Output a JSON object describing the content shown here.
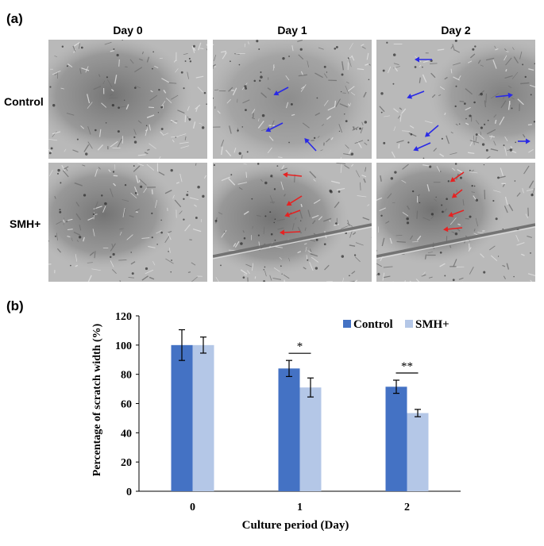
{
  "panel_a": {
    "label": "(a)",
    "columns": [
      "Day 0",
      "Day 1",
      "Day 2"
    ],
    "rows": [
      "Control",
      "SMH+"
    ],
    "arrow_colors": {
      "control": "#2a2ae6",
      "smh": "#e62222"
    }
  },
  "panel_b": {
    "label": "(b)"
  },
  "chart_data": {
    "type": "bar",
    "categories": [
      "0",
      "1",
      "2"
    ],
    "series": [
      {
        "name": "Control",
        "values": [
          100,
          84,
          71.5
        ],
        "errors": [
          10.5,
          5.5,
          4.5
        ],
        "color": "#4472c4"
      },
      {
        "name": "SMH+",
        "values": [
          100,
          71,
          53.5
        ],
        "errors": [
          5.5,
          6.5,
          2.5
        ],
        "color": "#b4c7e7"
      }
    ],
    "xlabel": "Culture period (Day)",
    "ylabel": "Percentage of scratch width (%)",
    "ylim": [
      0,
      120
    ],
    "yticks": [
      0,
      20,
      40,
      60,
      80,
      100,
      120
    ],
    "legend_position": "top-right",
    "grid": false,
    "significance": [
      {
        "category": "1",
        "label": "*"
      },
      {
        "category": "2",
        "label": "**"
      }
    ]
  }
}
